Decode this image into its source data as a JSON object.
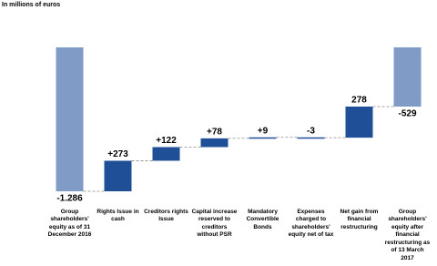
{
  "chart_data": {
    "type": "waterfall",
    "title": "In millions of euros",
    "categories": [
      "Group shareholders' equity as of 31 December 2016",
      "Rights Issue in cash",
      "Creditors rights Issue",
      "Capital increase reserved to creditors without PSR",
      "Mandatory Convertible Bonds",
      "Expenses charged to shareholders' equity net of tax",
      "Net gain from financial restructuring",
      "Group shareholders' equity after financial restructuring as of 13 March 2017"
    ],
    "values": [
      -1286,
      273,
      122,
      78,
      9,
      -3,
      278,
      -529
    ],
    "value_labels": [
      "-1.286",
      "+273",
      "+122",
      "+78",
      "+9",
      "-3",
      "278",
      "-529"
    ],
    "measure": [
      "absolute",
      "relative",
      "relative",
      "relative",
      "relative",
      "relative",
      "relative",
      "total"
    ],
    "colors": [
      "#7f9bc6",
      "#1f4f97",
      "#1f4f97",
      "#1f4f97",
      "#1f4f97",
      "#1f4f97",
      "#1f4f97",
      "#7f9bc6"
    ]
  }
}
